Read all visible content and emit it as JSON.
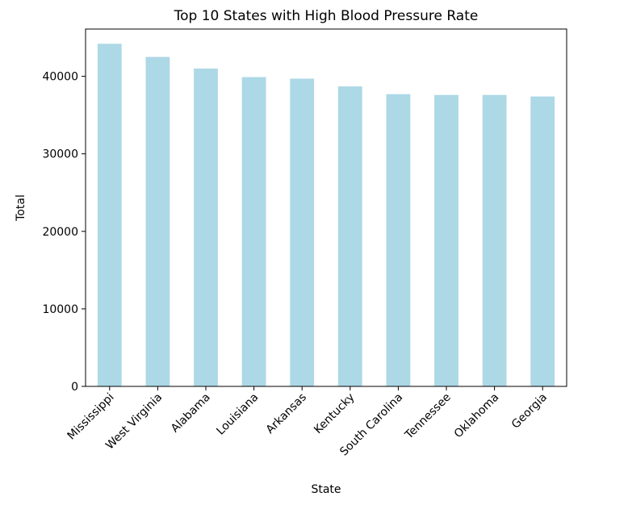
{
  "chart_data": {
    "type": "bar",
    "title": "Top 10 States with High Blood Pressure Rate",
    "xlabel": "State",
    "ylabel": "Total",
    "categories": [
      "Mississippi",
      "West Virginia",
      "Alabama",
      "Louisiana",
      "Arkansas",
      "Kentucky",
      "South Carolina",
      "Tennessee",
      "Oklahoma",
      "Georgia"
    ],
    "values": [
      44200,
      42500,
      41000,
      39900,
      39700,
      38700,
      37700,
      37600,
      37600,
      37400
    ],
    "ylim": [
      0,
      46100
    ],
    "yticks": [
      0,
      10000,
      20000,
      30000,
      40000
    ],
    "bar_color": "#add8e6",
    "grid": false,
    "legend": "none"
  }
}
